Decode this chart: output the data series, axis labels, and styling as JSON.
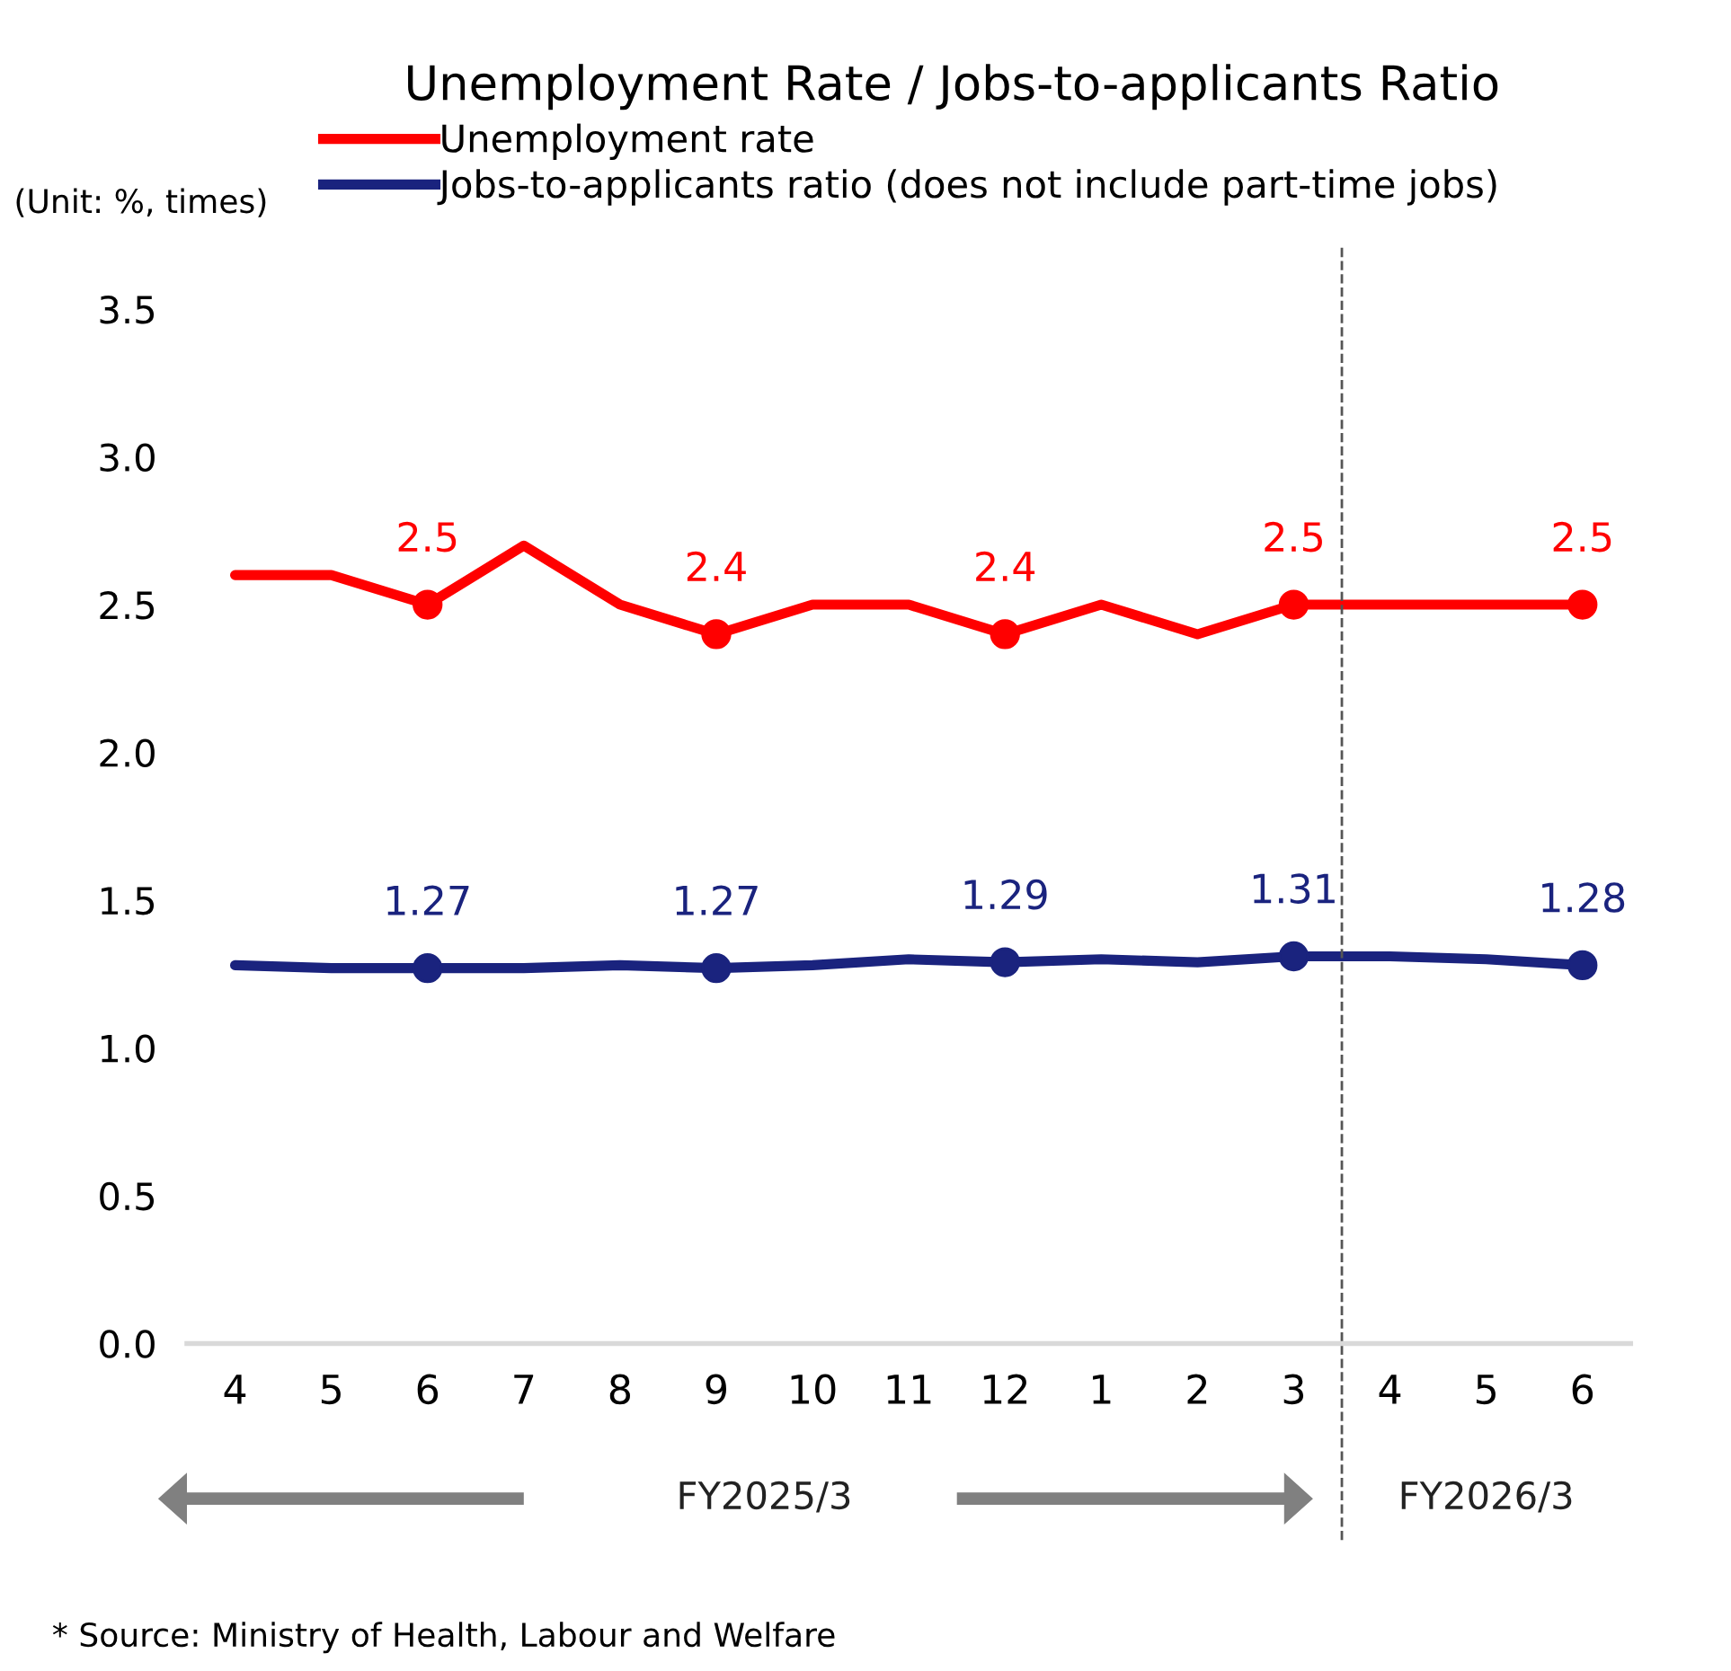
{
  "chart_data": {
    "type": "line",
    "title": "Unemployment Rate / Jobs-to-applicants Ratio",
    "ylabel": "(Unit: %, times)",
    "categories": [
      "4",
      "5",
      "6",
      "7",
      "8",
      "9",
      "10",
      "11",
      "12",
      "1",
      "2",
      "3",
      "4",
      "5",
      "6"
    ],
    "series": [
      {
        "name": "Unemployment rate",
        "color": "#ff0000",
        "values": [
          2.6,
          2.6,
          2.5,
          2.7,
          2.5,
          2.4,
          2.5,
          2.5,
          2.4,
          2.5,
          2.4,
          2.5,
          2.5,
          2.5,
          2.5
        ],
        "value_labels": [
          null,
          null,
          "2.5",
          null,
          null,
          "2.4",
          null,
          null,
          "2.4",
          null,
          null,
          "2.5",
          null,
          null,
          "2.5"
        ]
      },
      {
        "name": "Jobs-to-applicants ratio (does not include part-time jobs)",
        "color": "#1a237e",
        "values": [
          1.28,
          1.27,
          1.27,
          1.27,
          1.28,
          1.27,
          1.28,
          1.3,
          1.29,
          1.3,
          1.29,
          1.31,
          1.31,
          1.3,
          1.28
        ],
        "value_labels": [
          null,
          null,
          "1.27",
          null,
          null,
          "1.27",
          null,
          null,
          "1.29",
          null,
          null,
          "1.31",
          null,
          null,
          "1.28"
        ]
      }
    ],
    "ylim": [
      0,
      3.5
    ],
    "yticks": [
      {
        "value": 0,
        "label": "0.0"
      },
      {
        "value": 0.5,
        "label": "0.5"
      },
      {
        "value": 1,
        "label": "1.0"
      },
      {
        "value": 1.5,
        "label": "1.5"
      },
      {
        "value": 2,
        "label": "2.0"
      },
      {
        "value": 2.5,
        "label": "2.5"
      },
      {
        "value": 3,
        "label": "3.0"
      },
      {
        "value": 3.5,
        "label": "3.5"
      }
    ],
    "annotations": [
      "FY2025/3",
      "FY2026/3",
      "* Source: Ministry of Health, Labour and Welfare"
    ],
    "legend": "top",
    "grid": false,
    "line_style": "solid"
  }
}
